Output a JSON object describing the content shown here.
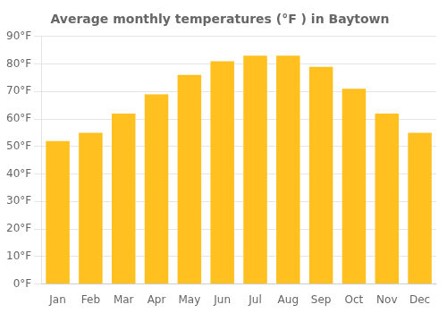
{
  "chart_data": {
    "type": "bar",
    "title": "Average monthly temperatures (°F ) in Baytown",
    "categories": [
      "Jan",
      "Feb",
      "Mar",
      "Apr",
      "May",
      "Jun",
      "Jul",
      "Aug",
      "Sep",
      "Oct",
      "Nov",
      "Dec"
    ],
    "values": [
      52,
      55,
      62,
      69,
      76,
      81,
      83,
      83,
      79,
      71,
      62,
      55
    ],
    "color": "#FFC020",
    "ylim": [
      0,
      90
    ],
    "yticks": [
      {
        "value": 0,
        "label": "0°F"
      },
      {
        "value": 10,
        "label": "10°F"
      },
      {
        "value": 20,
        "label": "20°F"
      },
      {
        "value": 30,
        "label": "30°F"
      },
      {
        "value": 40,
        "label": "40°F"
      },
      {
        "value": 50,
        "label": "50°F"
      },
      {
        "value": 60,
        "label": "60°F"
      },
      {
        "value": 70,
        "label": "70°F"
      },
      {
        "value": 80,
        "label": "80°F"
      },
      {
        "value": 90,
        "label": "90°F"
      }
    ],
    "grid": true
  }
}
